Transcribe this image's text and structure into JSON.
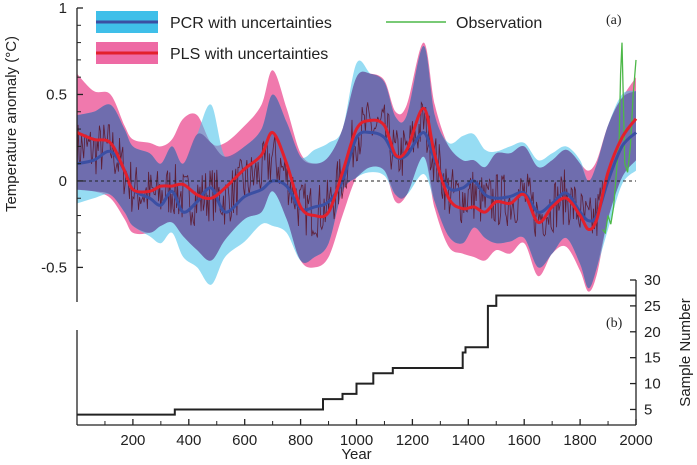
{
  "colors": {
    "pcr_band": "#3fbfe9",
    "pcr_line": "#3b4fa3",
    "pls_band": "#ee6aa4",
    "pls_line": "#e3202c",
    "overlap": "#6a64a8",
    "observation": "#4db848",
    "reconstruction": "#5a1020",
    "sample_line": "#222222",
    "axis": "#222222"
  },
  "chart_data": [
    {
      "type": "line",
      "panel_label": "(a)",
      "xlabel": "Year",
      "ylabel": "Temperature anomaly (°C)",
      "xlim": [
        0,
        2000
      ],
      "ylim": [
        -0.7,
        1.0
      ],
      "y_ticks": [
        {
          "v": 1,
          "label": "1"
        },
        {
          "v": 0.5,
          "label": "0.5"
        },
        {
          "v": 0,
          "label": "0"
        },
        {
          "v": -0.5,
          "label": "-0.5"
        }
      ],
      "x_ticks": [
        200,
        400,
        600,
        800,
        1000,
        1200,
        1400,
        1600,
        1800,
        2000
      ],
      "zero_line": "dashed",
      "legend": {
        "placement": "top",
        "entries": [
          {
            "label": "PCR with uncertainties",
            "key": "pcr"
          },
          {
            "label": "PLS with uncertainties",
            "key": "pls"
          },
          {
            "label": "Observation",
            "key": "obs"
          }
        ]
      },
      "series": [
        {
          "name": "PCR with uncertainties",
          "x": [
            0,
            60,
            120,
            170,
            200,
            260,
            300,
            340,
            380,
            430,
            480,
            530,
            600,
            660,
            700,
            750,
            800,
            850,
            900,
            950,
            1000,
            1050,
            1100,
            1140,
            1180,
            1240,
            1280,
            1330,
            1380,
            1420,
            1460,
            1500,
            1550,
            1600,
            1650,
            1700,
            1750,
            1800,
            1830,
            1860,
            1900,
            1950,
            2000
          ],
          "y": [
            0.1,
            0.12,
            0.17,
            0.06,
            -0.05,
            -0.1,
            -0.14,
            -0.06,
            -0.18,
            -0.12,
            -0.04,
            -0.18,
            -0.09,
            -0.05,
            0.0,
            -0.03,
            -0.16,
            -0.15,
            -0.12,
            0.0,
            0.25,
            0.28,
            0.25,
            0.14,
            0.15,
            0.28,
            0.12,
            -0.04,
            -0.04,
            0.0,
            -0.08,
            -0.1,
            -0.09,
            -0.07,
            -0.18,
            -0.13,
            -0.07,
            -0.18,
            -0.23,
            -0.2,
            0.0,
            0.2,
            0.28
          ],
          "lower": [
            -0.13,
            -0.1,
            -0.08,
            -0.18,
            -0.26,
            -0.32,
            -0.36,
            -0.3,
            -0.44,
            -0.5,
            -0.6,
            -0.44,
            -0.35,
            -0.25,
            -0.26,
            -0.3,
            -0.46,
            -0.44,
            -0.36,
            -0.06,
            0.02,
            0.05,
            0.03,
            -0.08,
            -0.08,
            0.04,
            -0.12,
            -0.32,
            -0.36,
            -0.27,
            -0.33,
            -0.36,
            -0.35,
            -0.33,
            -0.5,
            -0.42,
            -0.33,
            -0.48,
            -0.62,
            -0.5,
            -0.28,
            -0.02,
            0.06
          ],
          "upper": [
            0.38,
            0.4,
            0.44,
            0.3,
            0.2,
            0.16,
            0.1,
            0.2,
            0.1,
            0.27,
            0.44,
            0.14,
            0.2,
            0.3,
            0.5,
            0.34,
            0.14,
            0.18,
            0.22,
            0.3,
            0.68,
            0.62,
            0.57,
            0.37,
            0.38,
            0.78,
            0.38,
            0.22,
            0.26,
            0.27,
            0.18,
            0.17,
            0.2,
            0.22,
            0.12,
            0.16,
            0.2,
            0.12,
            0.0,
            0.1,
            0.32,
            0.5,
            0.52
          ]
        },
        {
          "name": "PLS with uncertainties",
          "x": [
            0,
            60,
            120,
            170,
            200,
            260,
            300,
            340,
            380,
            430,
            480,
            530,
            600,
            660,
            700,
            750,
            800,
            850,
            900,
            950,
            1000,
            1050,
            1100,
            1140,
            1180,
            1240,
            1280,
            1330,
            1380,
            1420,
            1460,
            1500,
            1550,
            1600,
            1650,
            1700,
            1750,
            1800,
            1830,
            1860,
            1900,
            1950,
            2000
          ],
          "y": [
            0.28,
            0.24,
            0.22,
            0.06,
            -0.05,
            -0.06,
            -0.03,
            -0.03,
            -0.02,
            -0.08,
            -0.1,
            -0.04,
            0.07,
            0.15,
            0.28,
            0.1,
            -0.15,
            -0.2,
            -0.18,
            0.05,
            0.3,
            0.35,
            0.32,
            0.15,
            0.18,
            0.42,
            0.15,
            -0.1,
            -0.16,
            -0.15,
            -0.18,
            -0.12,
            -0.13,
            -0.08,
            -0.24,
            -0.15,
            -0.1,
            -0.2,
            -0.28,
            -0.22,
            0.05,
            0.25,
            0.36
          ],
          "lower": [
            -0.05,
            -0.06,
            -0.1,
            -0.22,
            -0.3,
            -0.3,
            -0.26,
            -0.24,
            -0.32,
            -0.4,
            -0.46,
            -0.34,
            -0.22,
            -0.18,
            -0.06,
            -0.22,
            -0.46,
            -0.5,
            -0.44,
            -0.2,
            0.02,
            0.08,
            0.06,
            -0.12,
            -0.08,
            0.14,
            -0.16,
            -0.38,
            -0.42,
            -0.44,
            -0.46,
            -0.4,
            -0.42,
            -0.36,
            -0.55,
            -0.42,
            -0.38,
            -0.52,
            -0.64,
            -0.54,
            -0.22,
            0.02,
            0.12
          ],
          "upper": [
            0.62,
            0.52,
            0.5,
            0.32,
            0.24,
            0.22,
            0.2,
            0.24,
            0.36,
            0.38,
            0.22,
            0.22,
            0.32,
            0.44,
            0.64,
            0.42,
            0.16,
            0.1,
            0.14,
            0.3,
            0.6,
            0.62,
            0.58,
            0.4,
            0.44,
            0.8,
            0.44,
            0.2,
            0.12,
            0.12,
            0.08,
            0.16,
            0.16,
            0.2,
            0.08,
            0.12,
            0.18,
            0.1,
            0.06,
            0.12,
            0.32,
            0.48,
            0.6
          ]
        },
        {
          "name": "Observation",
          "x": [
            1880,
            1890,
            1900,
            1910,
            1920,
            1930,
            1940,
            1945,
            1950,
            1960,
            1970,
            1980,
            1990,
            2000
          ],
          "y": [
            -0.28,
            -0.3,
            -0.2,
            -0.25,
            -0.15,
            0.05,
            0.25,
            0.62,
            0.8,
            0.1,
            0.05,
            0.2,
            0.5,
            0.7
          ]
        }
      ]
    },
    {
      "type": "line",
      "panel_label": "(b)",
      "xlabel": "Year",
      "ylabel": "Sample Number",
      "xlim": [
        0,
        2000
      ],
      "ylim": [
        2,
        30
      ],
      "y_ticks": [
        5,
        10,
        15,
        20,
        25,
        30
      ],
      "series": [
        {
          "name": "Sample Number",
          "step": true,
          "x": [
            0,
            350,
            850,
            880,
            900,
            950,
            990,
            1000,
            1030,
            1060,
            1130,
            1360,
            1380,
            1390,
            1450,
            1470,
            1490,
            1500,
            2000
          ],
          "y": [
            4,
            5,
            5,
            7,
            7,
            8,
            8,
            10,
            10,
            12,
            13,
            13,
            16,
            17,
            17,
            25,
            25,
            27,
            27
          ]
        }
      ]
    }
  ]
}
